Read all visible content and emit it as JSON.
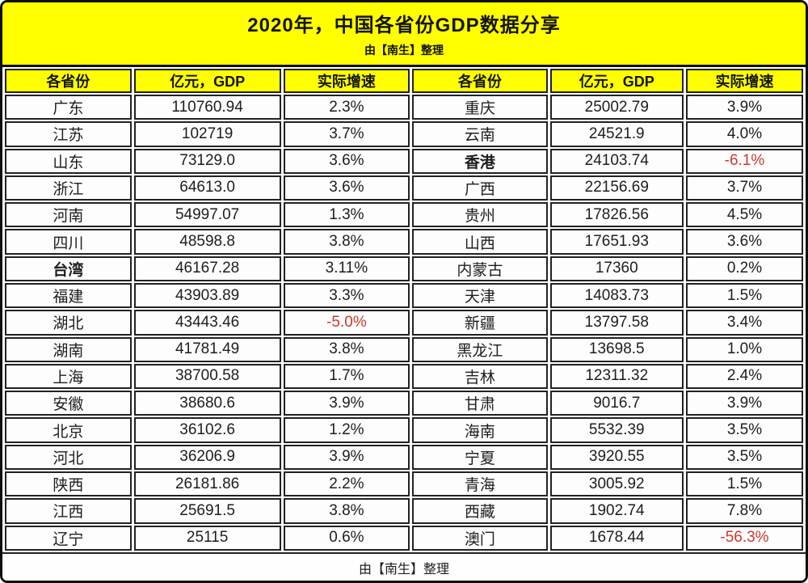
{
  "colors": {
    "header_bg": "#FFFF00",
    "negative_text": "#CE372E",
    "body_text": "#1D1D1D",
    "border": "#222222"
  },
  "chart_data": {
    "type": "table",
    "title": "2020年，中国各省份GDP数据分享",
    "subtitle": "由【南生】整理",
    "footer": "由【南生】整理",
    "columns": [
      "各省份",
      "亿元，GDP",
      "实际增速"
    ],
    "left_rows": [
      {
        "province": "广东",
        "gdp": "110760.94",
        "growth": "2.3%",
        "bold": false,
        "negative": false
      },
      {
        "province": "江苏",
        "gdp": "102719",
        "growth": "3.7%",
        "bold": false,
        "negative": false
      },
      {
        "province": "山东",
        "gdp": "73129.0",
        "growth": "3.6%",
        "bold": false,
        "negative": false
      },
      {
        "province": "浙江",
        "gdp": "64613.0",
        "growth": "3.6%",
        "bold": false,
        "negative": false
      },
      {
        "province": "河南",
        "gdp": "54997.07",
        "growth": "1.3%",
        "bold": false,
        "negative": false
      },
      {
        "province": "四川",
        "gdp": "48598.8",
        "growth": "3.8%",
        "bold": false,
        "negative": false
      },
      {
        "province": "台湾",
        "gdp": "46167.28",
        "growth": "3.11%",
        "bold": true,
        "negative": false
      },
      {
        "province": "福建",
        "gdp": "43903.89",
        "growth": "3.3%",
        "bold": false,
        "negative": false
      },
      {
        "province": "湖北",
        "gdp": "43443.46",
        "growth": "-5.0%",
        "bold": false,
        "negative": true
      },
      {
        "province": "湖南",
        "gdp": "41781.49",
        "growth": "3.8%",
        "bold": false,
        "negative": false
      },
      {
        "province": "上海",
        "gdp": "38700.58",
        "growth": "1.7%",
        "bold": false,
        "negative": false
      },
      {
        "province": "安徽",
        "gdp": "38680.6",
        "growth": "3.9%",
        "bold": false,
        "negative": false
      },
      {
        "province": "北京",
        "gdp": "36102.6",
        "growth": "1.2%",
        "bold": false,
        "negative": false
      },
      {
        "province": "河北",
        "gdp": "36206.9",
        "growth": "3.9%",
        "bold": false,
        "negative": false
      },
      {
        "province": "陕西",
        "gdp": "26181.86",
        "growth": "2.2%",
        "bold": false,
        "negative": false
      },
      {
        "province": "江西",
        "gdp": "25691.5",
        "growth": "3.8%",
        "bold": false,
        "negative": false
      },
      {
        "province": "辽宁",
        "gdp": "25115",
        "growth": "0.6%",
        "bold": false,
        "negative": false
      }
    ],
    "right_rows": [
      {
        "province": "重庆",
        "gdp": "25002.79",
        "growth": "3.9%",
        "bold": false,
        "negative": false
      },
      {
        "province": "云南",
        "gdp": "24521.9",
        "growth": "4.0%",
        "bold": false,
        "negative": false
      },
      {
        "province": "香港",
        "gdp": "24103.74",
        "growth": "-6.1%",
        "bold": true,
        "negative": true
      },
      {
        "province": "广西",
        "gdp": "22156.69",
        "growth": "3.7%",
        "bold": false,
        "negative": false
      },
      {
        "province": "贵州",
        "gdp": "17826.56",
        "growth": "4.5%",
        "bold": false,
        "negative": false
      },
      {
        "province": "山西",
        "gdp": "17651.93",
        "growth": "3.6%",
        "bold": false,
        "negative": false
      },
      {
        "province": "内蒙古",
        "gdp": "17360",
        "growth": "0.2%",
        "bold": false,
        "negative": false
      },
      {
        "province": "天津",
        "gdp": "14083.73",
        "growth": "1.5%",
        "bold": false,
        "negative": false
      },
      {
        "province": "新疆",
        "gdp": "13797.58",
        "growth": "3.4%",
        "bold": false,
        "negative": false
      },
      {
        "province": "黑龙江",
        "gdp": "13698.5",
        "growth": "1.0%",
        "bold": false,
        "negative": false
      },
      {
        "province": "吉林",
        "gdp": "12311.32",
        "growth": "2.4%",
        "bold": false,
        "negative": false
      },
      {
        "province": "甘肃",
        "gdp": "9016.7",
        "growth": "3.9%",
        "bold": false,
        "negative": false
      },
      {
        "province": "海南",
        "gdp": "5532.39",
        "growth": "3.5%",
        "bold": false,
        "negative": false
      },
      {
        "province": "宁夏",
        "gdp": "3920.55",
        "growth": "3.5%",
        "bold": false,
        "negative": false
      },
      {
        "province": "青海",
        "gdp": "3005.92",
        "growth": "1.5%",
        "bold": false,
        "negative": false
      },
      {
        "province": "西藏",
        "gdp": "1902.74",
        "growth": "7.8%",
        "bold": false,
        "negative": false
      },
      {
        "province": "澳门",
        "gdp": "1678.44",
        "growth": "-56.3%",
        "bold": false,
        "negative": true
      }
    ]
  }
}
